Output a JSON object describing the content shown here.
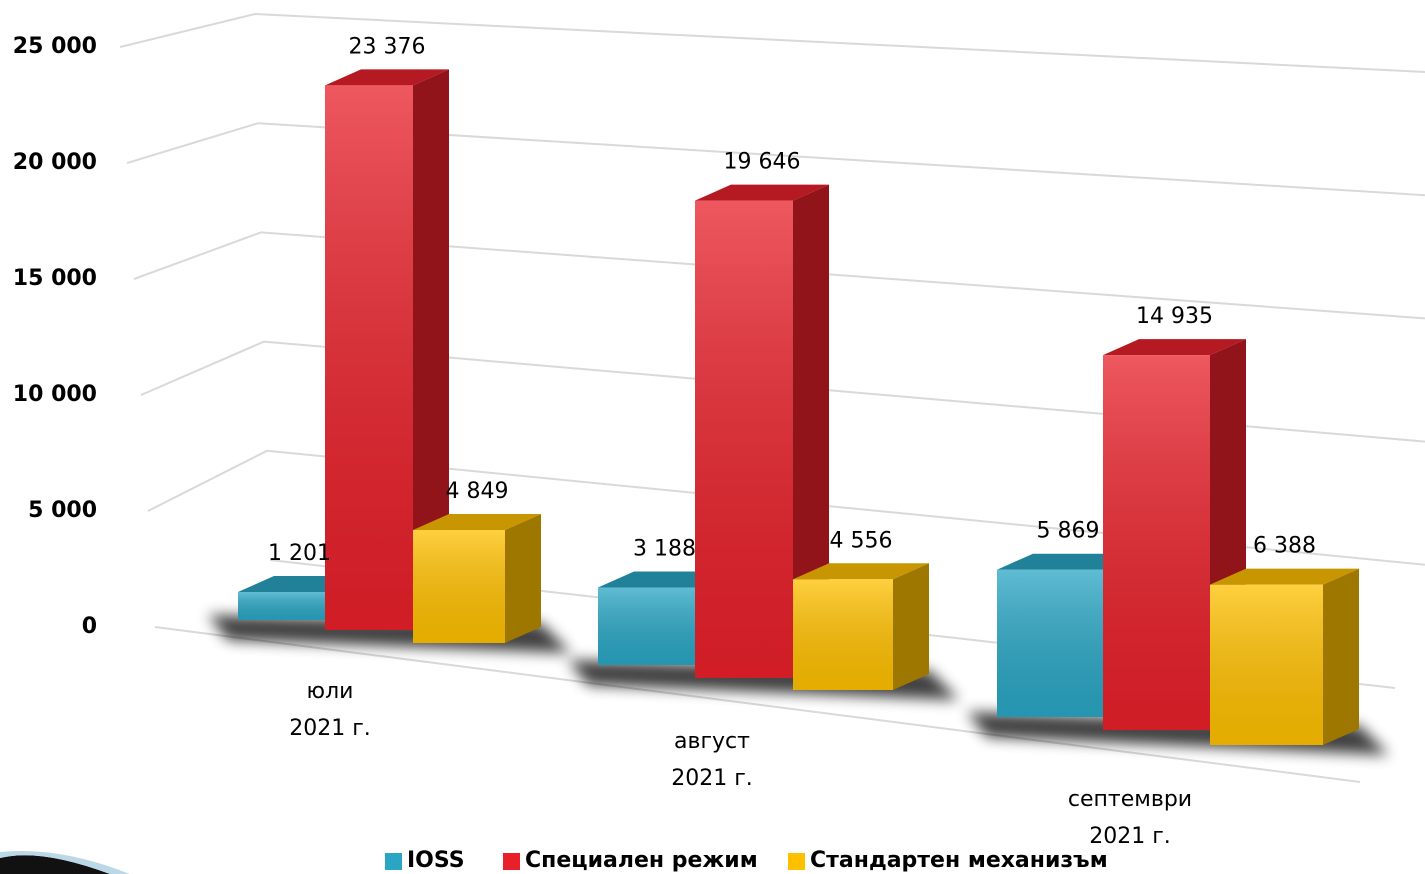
{
  "chart_data": {
    "type": "bar3d",
    "categories": [
      [
        "юли",
        "2021 г."
      ],
      [
        "август",
        "2021 г."
      ],
      [
        "септември",
        "2021 г."
      ]
    ],
    "series": [
      {
        "name": "IOSS",
        "color": "#2aa6c4",
        "values": [
          1201,
          3188,
          5869
        ],
        "value_labels": [
          "1 201",
          "3 188",
          "5 869"
        ]
      },
      {
        "name": "Специален режим",
        "color": "#e8202a",
        "values": [
          23376,
          19646,
          14935
        ],
        "value_labels": [
          "23 376",
          "19 646",
          "14 935"
        ]
      },
      {
        "name": "Стандартен механизъм",
        "color": "#ffc000",
        "values": [
          4849,
          4556,
          6388
        ],
        "value_labels": [
          "4 849",
          "4 556",
          "6 388"
        ]
      }
    ],
    "ylim": [
      0,
      25000
    ],
    "yticks": [
      0,
      {
        "value": 5000,
        "label": "5 000"
      },
      {
        "value": 10000,
        "label": "10 000"
      },
      {
        "value": 15000,
        "label": "15 000"
      },
      {
        "value": 20000,
        "label": "20 000"
      },
      {
        "value": 25000,
        "label": "25 000"
      }
    ],
    "grid": true,
    "legend": "bottom"
  }
}
